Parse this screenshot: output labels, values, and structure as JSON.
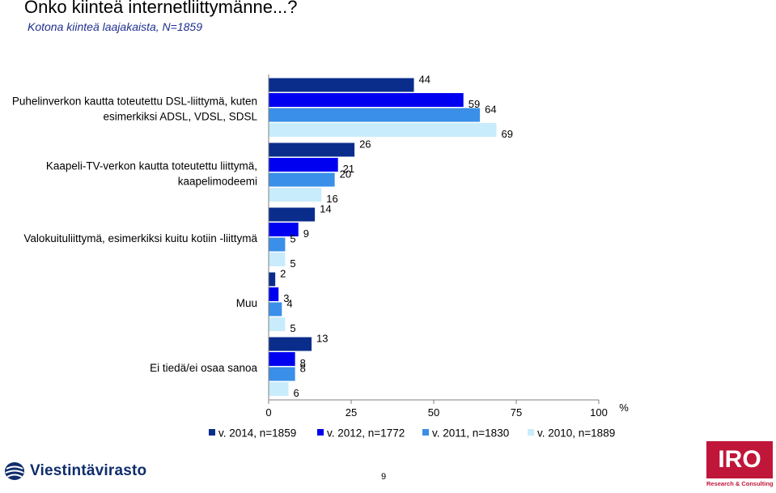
{
  "title": "Onko kiinteä internetliittymänne...?",
  "subtitle": "Kotona kiinteä laajakaista, N=1859",
  "page_number": "9",
  "logo_left_text": "Viestintävirasto",
  "logo_right_text": "IRO",
  "logo_right_tagline": "Research & Consulting",
  "colors": {
    "v2014": "#0a2d8c",
    "v2012": "#0000f0",
    "v2011": "#3a8fe8",
    "v2010": "#c8ecfb"
  },
  "chart_data": {
    "type": "bar",
    "orientation": "horizontal",
    "categories": [
      "Puhelinverkon kautta toteutettu DSL-liittymä, kuten esimerkiksi ADSL, VDSL, SDSL",
      "Kaapeli-TV-verkon kautta toteutettu liittymä, kaapelimodeemi",
      "Valokuituliittymä, esimerkiksi kuitu kotiin -liittymä",
      "Muu",
      "Ei tiedä/ei osaa sanoa"
    ],
    "category_lines": [
      [
        "Puhelinverkon kautta toteutettu DSL-liittymä, kuten",
        "esimerkiksi ADSL, VDSL, SDSL"
      ],
      [
        "Kaapeli-TV-verkon kautta toteutettu liittymä,",
        "kaapelimodeemi"
      ],
      [
        "Valokuituliittymä, esimerkiksi kuitu kotiin -liittymä"
      ],
      [
        "Muu"
      ],
      [
        "Ei tiedä/ei osaa sanoa"
      ]
    ],
    "series": [
      {
        "name": "v. 2014, n=1859",
        "values": [
          44,
          26,
          14,
          2,
          13
        ]
      },
      {
        "name": "v. 2012, n=1772",
        "values": [
          59,
          21,
          9,
          3,
          8
        ]
      },
      {
        "name": "v. 2011, n=1830",
        "values": [
          64,
          20,
          5,
          4,
          8
        ]
      },
      {
        "name": "v. 2010, n=1889",
        "values": [
          69,
          16,
          5,
          5,
          6
        ]
      }
    ],
    "x_ticks": [
      "0",
      "25",
      "50",
      "75",
      "100"
    ],
    "x_unit": "%",
    "xlim": [
      0,
      100
    ],
    "grid": false,
    "legend_position": "bottom"
  }
}
